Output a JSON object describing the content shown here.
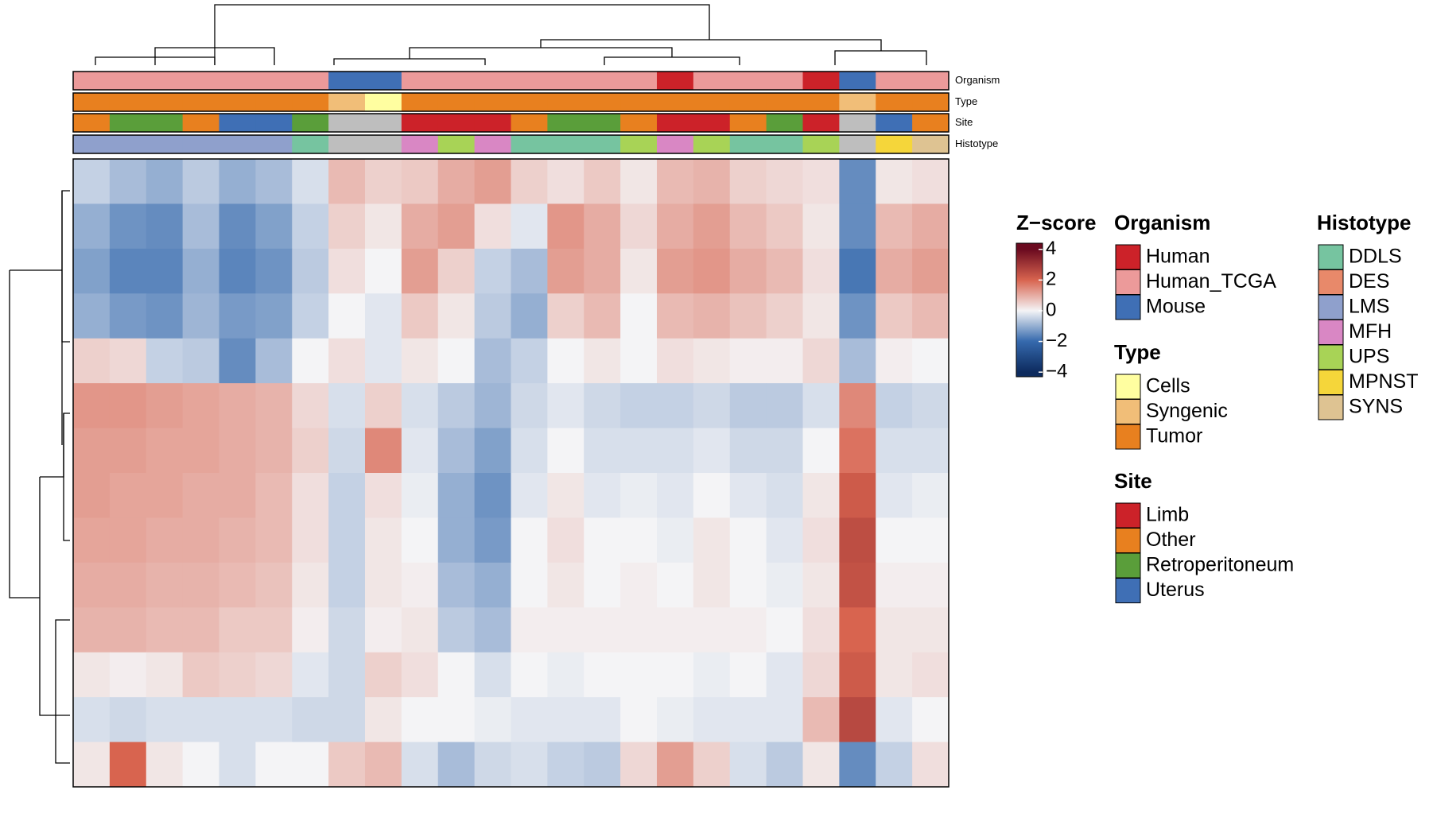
{
  "chart_data": {
    "type": "heatmap",
    "zlim": [
      -4.3,
      4.4
    ],
    "colorbar_title": "Z−score",
    "zticks": [
      4,
      2,
      0,
      {
        "value": -2,
        "label": "−2"
      },
      {
        "value": -4,
        "label": "−4"
      }
    ],
    "colorscale": [
      {
        "value": -4,
        "color": "#0d2b5e"
      },
      {
        "value": -2,
        "color": "#3569ad"
      },
      {
        "value": 0,
        "color": "#f4f4f6"
      },
      {
        "value": 2,
        "color": "#d8644f"
      },
      {
        "value": 4,
        "color": "#6a0a1f"
      }
    ],
    "na_color": "#bebebe",
    "annotations": [
      {
        "name": "Organism",
        "values": [
          "Human_TCGA",
          "Human_TCGA",
          "Human_TCGA",
          "Human_TCGA",
          "Human_TCGA",
          "Human_TCGA",
          "Human_TCGA",
          "Mouse",
          "Mouse",
          "Human_TCGA",
          "Human_TCGA",
          "Human_TCGA",
          "Human_TCGA",
          "Human_TCGA",
          "Human_TCGA",
          "Human_TCGA",
          "Human",
          "Human_TCGA",
          "Human_TCGA",
          "Human_TCGA",
          "Human",
          "Mouse",
          "Human_TCGA",
          "Human_TCGA"
        ]
      },
      {
        "name": "Type",
        "values": [
          "Tumor",
          "Tumor",
          "Tumor",
          "Tumor",
          "Tumor",
          "Tumor",
          "Tumor",
          "Syngenic",
          "Cells",
          "Tumor",
          "Tumor",
          "Tumor",
          "Tumor",
          "Tumor",
          "Tumor",
          "Tumor",
          "Tumor",
          "Tumor",
          "Tumor",
          "Tumor",
          "Tumor",
          "Syngenic",
          "Tumor",
          "Tumor"
        ]
      },
      {
        "name": "Site",
        "values": [
          "Other",
          "Retroperitoneum",
          "Retroperitoneum",
          "Other",
          "Uterus",
          "Uterus",
          "Retroperitoneum",
          null,
          null,
          "Limb",
          "Limb",
          "Limb",
          "Other",
          "Retroperitoneum",
          "Retroperitoneum",
          "Other",
          "Limb",
          "Limb",
          "Other",
          "Retroperitoneum",
          "Limb",
          null,
          "Uterus",
          "Other"
        ]
      },
      {
        "name": "Histotype",
        "values": [
          "LMS",
          "LMS",
          "LMS",
          "LMS",
          "LMS",
          "LMS",
          "DDLS",
          null,
          null,
          "MFH",
          "UPS",
          "MFH",
          "DDLS",
          "DDLS",
          "DDLS",
          "UPS",
          "MFH",
          "UPS",
          "DDLS",
          "DDLS",
          "UPS",
          null,
          "MPNST",
          "SYNS"
        ]
      }
    ],
    "legends": [
      {
        "title": "Organism",
        "entries": [
          {
            "label": "Human",
            "color": "#cc2229"
          },
          {
            "label": "Human_TCGA",
            "color": "#ec9a9a"
          },
          {
            "label": "Mouse",
            "color": "#3f6fb5"
          }
        ]
      },
      {
        "title": "Type",
        "entries": [
          {
            "label": "Cells",
            "color": "#fffea0"
          },
          {
            "label": "Syngenic",
            "color": "#f1be78"
          },
          {
            "label": "Tumor",
            "color": "#e8801f"
          }
        ]
      },
      {
        "title": "Site",
        "entries": [
          {
            "label": "Limb",
            "color": "#cc2229"
          },
          {
            "label": "Other",
            "color": "#e8801f"
          },
          {
            "label": "Retroperitoneum",
            "color": "#5a9e3a"
          },
          {
            "label": "Uterus",
            "color": "#3f6fb5"
          }
        ]
      },
      {
        "title": "Histotype",
        "entries": [
          {
            "label": "DDLS",
            "color": "#76c4a0"
          },
          {
            "label": "DES",
            "color": "#e8896a"
          },
          {
            "label": "LMS",
            "color": "#8fa0cc"
          },
          {
            "label": "MFH",
            "color": "#d987c4"
          },
          {
            "label": "UPS",
            "color": "#a8d356"
          },
          {
            "label": "MPNST",
            "color": "#f5d63a"
          },
          {
            "label": "SYNS",
            "color": "#dec392"
          }
        ]
      }
    ],
    "values": [
      [
        -0.5,
        -0.8,
        -1,
        -0.6,
        -1,
        -0.8,
        -0.3,
        0.8,
        0.5,
        0.6,
        1,
        1.2,
        0.5,
        0.3,
        0.6,
        0.2,
        0.8,
        0.9,
        0.5,
        0.4,
        0.3,
        -1.5,
        0.2,
        0.3
      ],
      [
        -1,
        -1.4,
        -1.5,
        -0.8,
        -1.5,
        -1.2,
        -0.5,
        0.5,
        0.2,
        1,
        1.2,
        0.3,
        -0.2,
        1.3,
        1,
        0.4,
        1,
        1.2,
        0.8,
        0.6,
        0.2,
        -1.5,
        0.8,
        1
      ],
      [
        -1.2,
        -1.6,
        -1.6,
        -1,
        -1.6,
        -1.4,
        -0.6,
        0.3,
        0,
        1.2,
        0.5,
        -0.5,
        -0.8,
        1.2,
        1,
        0.2,
        1.2,
        1.3,
        1,
        0.8,
        0.3,
        -1.8,
        1,
        1.2
      ],
      [
        -1,
        -1.3,
        -1.4,
        -0.9,
        -1.3,
        -1.2,
        -0.5,
        0,
        -0.2,
        0.6,
        0.2,
        -0.6,
        -1,
        0.5,
        0.8,
        0,
        0.8,
        0.9,
        0.7,
        0.5,
        0.2,
        -1.4,
        0.6,
        0.8
      ],
      [
        0.5,
        0.4,
        -0.5,
        -0.6,
        -1.5,
        -0.8,
        0,
        0.3,
        -0.2,
        0.2,
        0,
        -0.8,
        -0.5,
        0,
        0.2,
        0,
        0.3,
        0.2,
        0.1,
        0.1,
        0.4,
        -0.8,
        0.1,
        0
      ],
      [
        1.3,
        1.3,
        1.2,
        1.1,
        1,
        0.9,
        0.4,
        -0.3,
        0.5,
        -0.3,
        -0.6,
        -0.9,
        -0.4,
        -0.2,
        -0.4,
        -0.5,
        -0.5,
        -0.4,
        -0.6,
        -0.6,
        -0.3,
        1.5,
        -0.5,
        -0.4
      ],
      [
        1.2,
        1.2,
        1.1,
        1.1,
        1,
        0.9,
        0.5,
        -0.4,
        1.5,
        -0.2,
        -0.8,
        -1.2,
        -0.3,
        0,
        -0.3,
        -0.3,
        -0.3,
        -0.2,
        -0.4,
        -0.4,
        0,
        1.8,
        -0.3,
        -0.3
      ],
      [
        1.2,
        1.1,
        1.1,
        1,
        1,
        0.8,
        0.3,
        -0.5,
        0.3,
        -0.1,
        -1,
        -1.4,
        -0.2,
        0.2,
        -0.2,
        -0.1,
        -0.2,
        0,
        -0.2,
        -0.3,
        0.2,
        2.2,
        -0.2,
        -0.1
      ],
      [
        1.1,
        1.1,
        1,
        1,
        0.9,
        0.8,
        0.3,
        -0.5,
        0.2,
        0,
        -1,
        -1.3,
        0,
        0.3,
        0,
        0,
        -0.1,
        0.2,
        0,
        -0.2,
        0.3,
        2.5,
        0,
        0
      ],
      [
        1,
        1,
        0.9,
        0.9,
        0.8,
        0.7,
        0.2,
        -0.5,
        0.2,
        0.1,
        -0.8,
        -1,
        0,
        0.2,
        0,
        0.1,
        0,
        0.2,
        0,
        -0.1,
        0.2,
        2.4,
        0.1,
        0.1
      ],
      [
        0.9,
        0.9,
        0.8,
        0.8,
        0.6,
        0.6,
        0.1,
        -0.4,
        0.1,
        0.2,
        -0.6,
        -0.8,
        0.1,
        0.1,
        0.1,
        0.1,
        0.1,
        0.1,
        0.1,
        0,
        0.3,
        2,
        0.2,
        0.2
      ],
      [
        0.2,
        0.1,
        0.2,
        0.6,
        0.5,
        0.4,
        -0.2,
        -0.4,
        0.5,
        0.3,
        0,
        -0.3,
        0,
        -0.1,
        0,
        0,
        0,
        -0.1,
        0,
        -0.2,
        0.4,
        2.2,
        0.2,
        0.3
      ],
      [
        -0.3,
        -0.4,
        -0.3,
        -0.3,
        -0.3,
        -0.3,
        -0.4,
        -0.4,
        0.2,
        0,
        0,
        -0.1,
        -0.2,
        -0.2,
        -0.2,
        0,
        -0.1,
        -0.2,
        -0.2,
        -0.2,
        0.8,
        2.6,
        -0.2,
        0
      ],
      [
        0.2,
        2,
        0.2,
        0,
        -0.3,
        0,
        0,
        0.6,
        0.8,
        -0.3,
        -0.8,
        -0.4,
        -0.3,
        -0.5,
        -0.6,
        0.4,
        1.2,
        0.5,
        -0.3,
        -0.6,
        0.2,
        -1.5,
        -0.5,
        0.3
      ]
    ]
  }
}
